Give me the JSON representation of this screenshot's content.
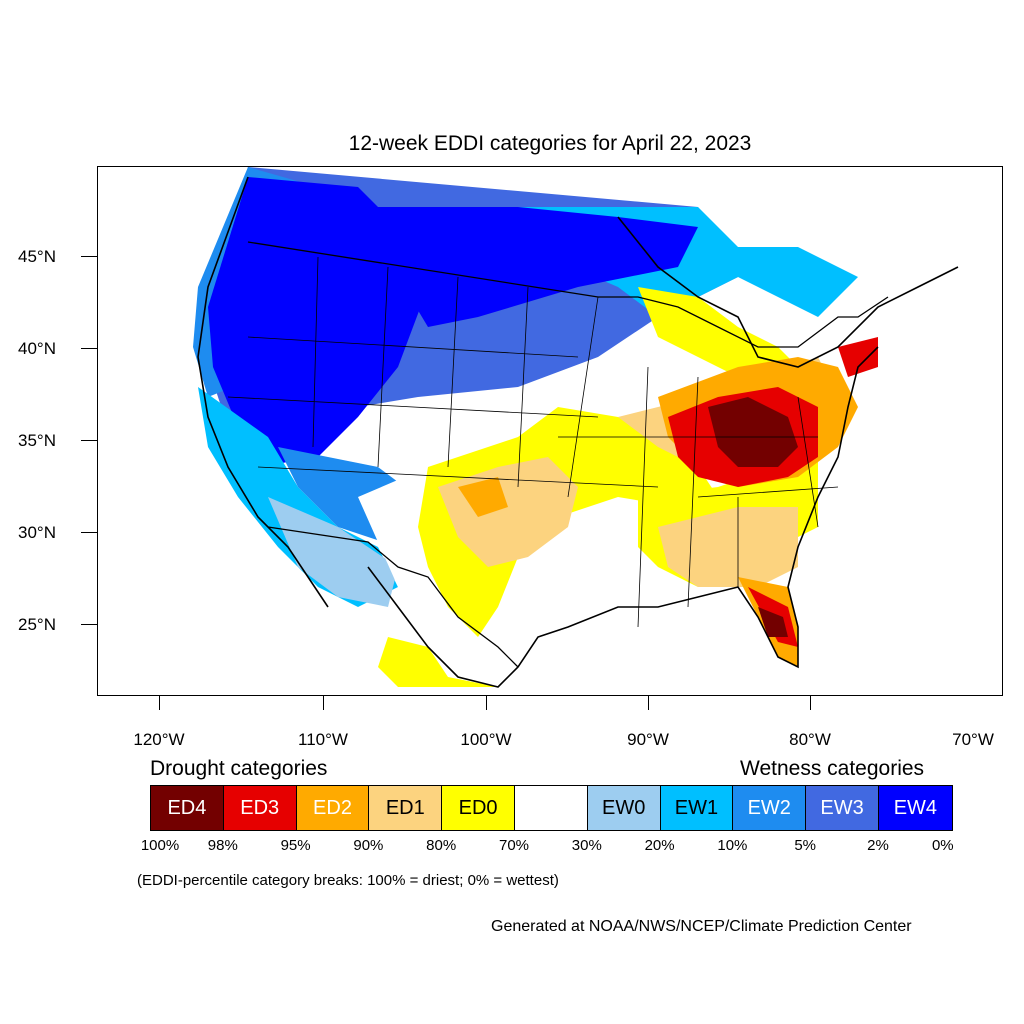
{
  "title": "12-week EDDI categories for April 22, 2023",
  "lat_labels": [
    "45°N",
    "40°N",
    "35°N",
    "30°N",
    "25°N"
  ],
  "lon_labels": [
    "120°W",
    "110°W",
    "100°W",
    "90°W",
    "80°W",
    "70°W"
  ],
  "legend": {
    "drought_heading": "Drought categories",
    "wetness_heading": "Wetness categories",
    "categories": [
      {
        "label": "ED4",
        "color": "#730000",
        "text_color": "#ffffff"
      },
      {
        "label": "ED3",
        "color": "#e60000",
        "text_color": "#ffffff"
      },
      {
        "label": "ED2",
        "color": "#ffaa00",
        "text_color": "#ffffff"
      },
      {
        "label": "ED1",
        "color": "#fcd37f",
        "text_color": "#000000"
      },
      {
        "label": "ED0",
        "color": "#ffff00",
        "text_color": "#000000"
      },
      {
        "label": "",
        "color": "#ffffff",
        "text_color": "#000000"
      },
      {
        "label": "EW0",
        "color": "#9dcdf0",
        "text_color": "#000000"
      },
      {
        "label": "EW1",
        "color": "#00bfff",
        "text_color": "#000000"
      },
      {
        "label": "EW2",
        "color": "#1e8cf0",
        "text_color": "#ffffff"
      },
      {
        "label": "EW3",
        "color": "#4169e1",
        "text_color": "#ffffff"
      },
      {
        "label": "EW4",
        "color": "#0000ff",
        "text_color": "#ffffff"
      }
    ],
    "breaks": [
      "100%",
      "98%",
      "95%",
      "90%",
      "80%",
      "70%",
      "30%",
      "20%",
      "10%",
      "5%",
      "2%",
      "0%"
    ]
  },
  "note": "(EDDI-percentile category breaks: 100% = driest; 0% = wettest)",
  "credit": "Generated at NOAA/NWS/NCEP/Climate Prediction Center"
}
